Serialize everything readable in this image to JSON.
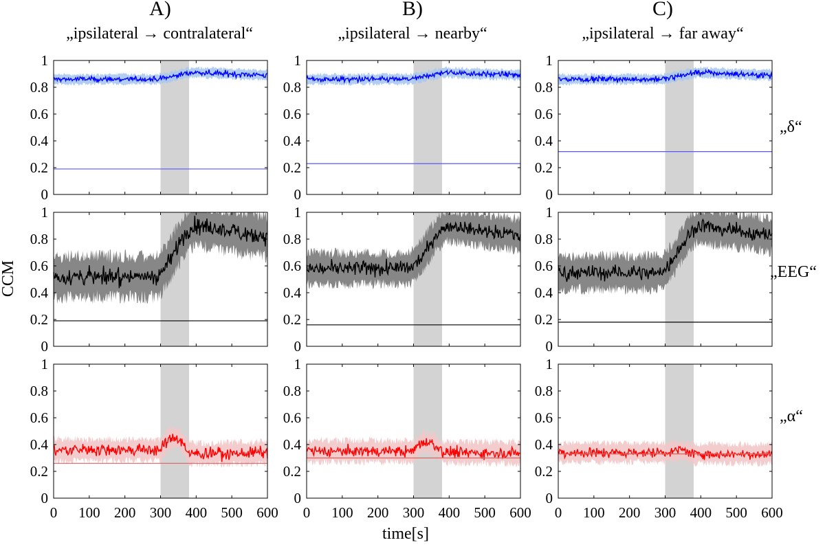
{
  "chart_data": {
    "type": "line",
    "ylabel": "CCM",
    "xlabel": "time[s]",
    "xlim": [
      0,
      600
    ],
    "ylim": [
      0,
      1
    ],
    "xticks": [
      "0",
      "100",
      "200",
      "300",
      "400",
      "500",
      "600"
    ],
    "yticks": [
      "0",
      "0.2",
      "0.4",
      "0.6",
      "0.8",
      "1"
    ],
    "shaded_interval": [
      300,
      380
    ],
    "columns": [
      {
        "letter": "A)",
        "subtitle": "„ipsilateral → contralateral“"
      },
      {
        "letter": "B)",
        "subtitle": "„ipsilateral → nearby“"
      },
      {
        "letter": "C)",
        "subtitle": "„ipsilateral → far away“"
      }
    ],
    "rows": [
      {
        "label": "„δ“",
        "color": "#0000ff",
        "band_color": "#a8c8f0",
        "threshold_color": "#5555ff"
      },
      {
        "label": "„EEG“",
        "color": "#000000",
        "band_color": "#7a7a7a",
        "threshold_color": "#000000"
      },
      {
        "label": "„α“",
        "color": "#ff0000",
        "band_color": "#f2c8c8",
        "threshold_color": "#e06060"
      }
    ],
    "panels": [
      {
        "row": 0,
        "col": 0,
        "threshold": 0.19,
        "mean_before": 0.86,
        "mean_after": 0.91,
        "end_value": 0.89,
        "noise": 0.02,
        "band": 0.04
      },
      {
        "row": 0,
        "col": 1,
        "threshold": 0.23,
        "mean_before": 0.86,
        "mean_after": 0.91,
        "end_value": 0.89,
        "noise": 0.02,
        "band": 0.04
      },
      {
        "row": 0,
        "col": 2,
        "threshold": 0.32,
        "mean_before": 0.86,
        "mean_after": 0.91,
        "end_value": 0.89,
        "noise": 0.02,
        "band": 0.04
      },
      {
        "row": 1,
        "col": 0,
        "threshold": 0.19,
        "mean_before": 0.52,
        "mean_after": 0.9,
        "end_value": 0.82,
        "noise": 0.06,
        "band": 0.17
      },
      {
        "row": 1,
        "col": 1,
        "threshold": 0.16,
        "mean_before": 0.58,
        "mean_after": 0.9,
        "end_value": 0.83,
        "noise": 0.05,
        "band": 0.13
      },
      {
        "row": 1,
        "col": 2,
        "threshold": 0.18,
        "mean_before": 0.55,
        "mean_after": 0.9,
        "end_value": 0.83,
        "noise": 0.05,
        "band": 0.14
      },
      {
        "row": 2,
        "col": 0,
        "threshold": 0.26,
        "mean_before": 0.36,
        "mean_after": 0.33,
        "end_value": 0.34,
        "peak": 0.46,
        "noise": 0.04,
        "band": 0.09
      },
      {
        "row": 2,
        "col": 1,
        "threshold": 0.3,
        "mean_before": 0.35,
        "mean_after": 0.34,
        "end_value": 0.34,
        "peak": 0.42,
        "noise": 0.04,
        "band": 0.09
      },
      {
        "row": 2,
        "col": 2,
        "threshold": 0.33,
        "mean_before": 0.34,
        "mean_after": 0.33,
        "end_value": 0.33,
        "peak": 0.36,
        "noise": 0.035,
        "band": 0.08
      }
    ]
  }
}
